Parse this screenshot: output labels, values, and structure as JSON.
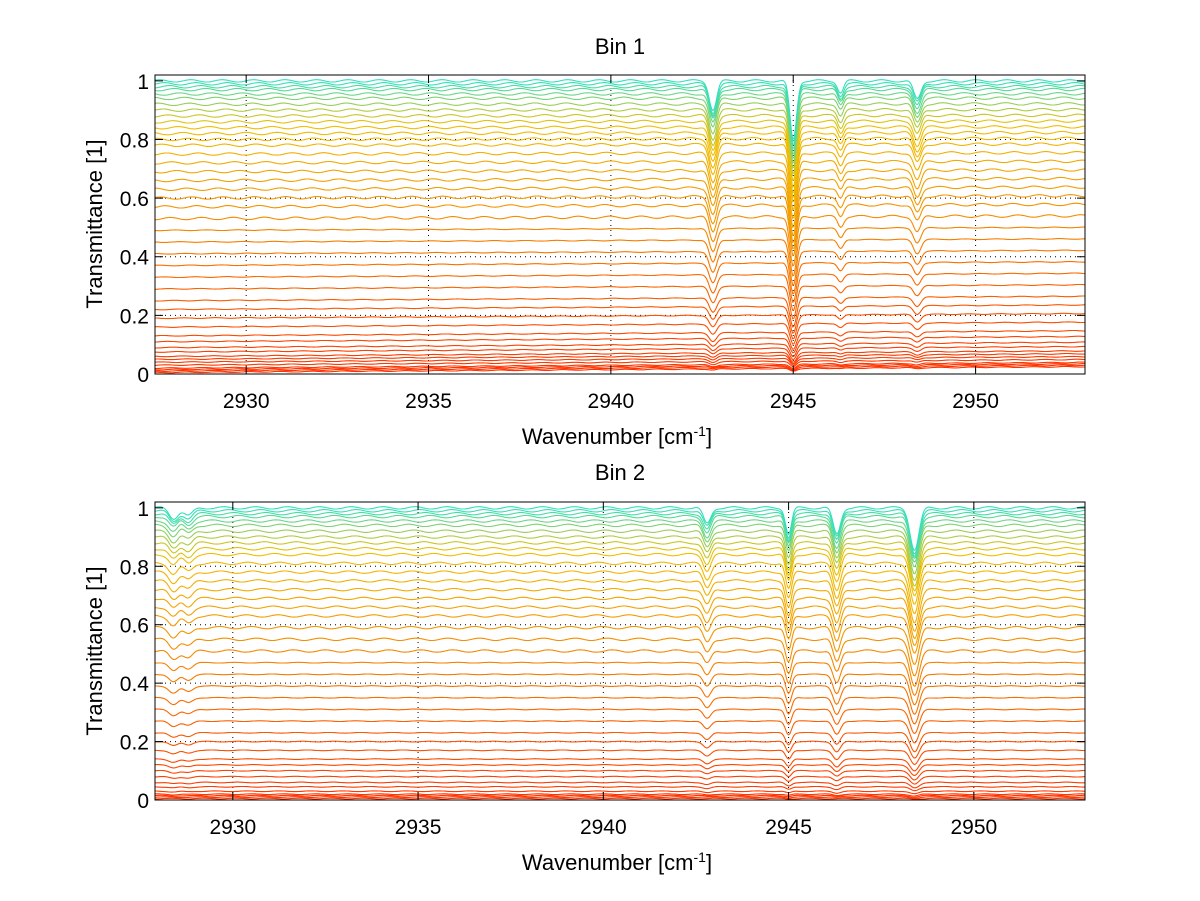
{
  "chart_data": [
    {
      "type": "line",
      "title": "Bin 1",
      "xlabel_main": "Wavenumber [cm",
      "xlabel_sup": "-1",
      "xlabel_close": "]",
      "ylabel": "Transmittance [1]",
      "xlim": [
        2927.5,
        2953
      ],
      "ylim": [
        0,
        1.02
      ],
      "xticks": [
        2930,
        2935,
        2940,
        2945,
        2950
      ],
      "xtick_labels": [
        "2930",
        "2935",
        "2940",
        "2945",
        "2950"
      ],
      "yticks": [
        0,
        0.2,
        0.4,
        0.6,
        0.8,
        1
      ],
      "ytick_labels": [
        "0",
        "0.2",
        "0.4",
        "0.6",
        "0.8",
        "1"
      ],
      "grid": true,
      "colors": {
        "low": "#ff3300",
        "mid": "#f0c000",
        "high": "#30e0c0"
      },
      "baselines": [
        0.005,
        0.01,
        0.015,
        0.02,
        0.03,
        0.04,
        0.05,
        0.06,
        0.075,
        0.09,
        0.11,
        0.13,
        0.16,
        0.19,
        0.22,
        0.25,
        0.29,
        0.33,
        0.37,
        0.41,
        0.45,
        0.49,
        0.53,
        0.57,
        0.6,
        0.63,
        0.66,
        0.69,
        0.72,
        0.75,
        0.78,
        0.8,
        0.82,
        0.84,
        0.86,
        0.88,
        0.9,
        0.92,
        0.94,
        0.955,
        0.97,
        0.98,
        0.99,
        1.0
      ],
      "absorption_lines": [
        {
          "center": 2942.8,
          "width": 0.1,
          "depth": 0.22
        },
        {
          "center": 2945.0,
          "width": 0.09,
          "depth": 0.45
        },
        {
          "center": 2946.3,
          "width": 0.08,
          "depth": 0.09
        },
        {
          "center": 2948.4,
          "width": 0.1,
          "depth": 0.14
        }
      ],
      "baseline_slope": 0.02
    },
    {
      "type": "line",
      "title": "Bin 2",
      "xlabel_main": "Wavenumber [cm",
      "xlabel_sup": "-1",
      "xlabel_close": "]",
      "ylabel": "Transmittance [1]",
      "xlim": [
        2927.9,
        2953
      ],
      "ylim": [
        0,
        1.02
      ],
      "xticks": [
        2930,
        2935,
        2940,
        2945,
        2950
      ],
      "xtick_labels": [
        "2930",
        "2935",
        "2940",
        "2945",
        "2950"
      ],
      "yticks": [
        0,
        0.2,
        0.4,
        0.6,
        0.8,
        1
      ],
      "ytick_labels": [
        "0",
        "0.2",
        "0.4",
        "0.6",
        "0.8",
        "1"
      ],
      "grid": true,
      "colors": {
        "low": "#ff3300",
        "mid": "#f0c000",
        "high": "#30e0c0"
      },
      "baselines": [
        0.005,
        0.01,
        0.015,
        0.02,
        0.03,
        0.045,
        0.06,
        0.08,
        0.1,
        0.12,
        0.14,
        0.17,
        0.2,
        0.23,
        0.27,
        0.31,
        0.35,
        0.39,
        0.43,
        0.47,
        0.51,
        0.55,
        0.59,
        0.63,
        0.66,
        0.69,
        0.72,
        0.75,
        0.78,
        0.81,
        0.84,
        0.86,
        0.88,
        0.9,
        0.92,
        0.94,
        0.955,
        0.97,
        0.98,
        0.99,
        1.0
      ],
      "absorption_lines": [
        {
          "center": 2942.8,
          "width": 0.1,
          "depth": 0.12
        },
        {
          "center": 2945.0,
          "width": 0.08,
          "depth": 0.2
        },
        {
          "center": 2946.3,
          "width": 0.1,
          "depth": 0.2
        },
        {
          "center": 2948.4,
          "width": 0.12,
          "depth": 0.32
        },
        {
          "center": 2928.4,
          "width": 0.12,
          "depth": 0.08
        },
        {
          "center": 2928.8,
          "width": 0.12,
          "depth": 0.06
        }
      ],
      "baseline_slope": 0.0
    }
  ]
}
